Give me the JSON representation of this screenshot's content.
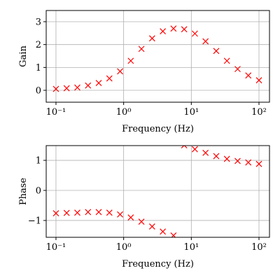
{
  "chart_data": [
    {
      "type": "scatter",
      "xlabel": "Frequency (Hz)",
      "ylabel": "Gain",
      "xscale": "log",
      "grid": true,
      "color": "#ff0000",
      "marker": "x",
      "x": [
        0.1,
        0.1438,
        0.2069,
        0.2976,
        0.4281,
        0.6158,
        0.8859,
        1.2743,
        1.833,
        2.6367,
        3.7927,
        5.4556,
        7.8476,
        11.2884,
        16.2378,
        23.3572,
        33.5982,
        48.3293,
        69.5193,
        100
      ],
      "values": [
        0.06,
        0.09,
        0.12,
        0.21,
        0.32,
        0.52,
        0.83,
        1.29,
        1.81,
        2.27,
        2.58,
        2.7,
        2.67,
        2.48,
        2.14,
        1.72,
        1.29,
        0.93,
        0.65,
        0.44
      ],
      "xlim": [
        0.0717,
        143
      ],
      "ylim": [
        -0.52,
        3.49
      ],
      "xticks": [
        {
          "value": 0.1,
          "label": "10⁻¹"
        },
        {
          "value": 1,
          "label": "10⁰"
        },
        {
          "value": 10,
          "label": "10¹"
        },
        {
          "value": 100,
          "label": "10²"
        }
      ],
      "yticks": [
        0,
        1,
        2,
        3
      ]
    },
    {
      "type": "scatter",
      "xlabel": "Frequency (Hz)",
      "ylabel": "Phase",
      "xscale": "log",
      "grid": true,
      "color": "#ff0000",
      "marker": "x",
      "x": [
        0.1,
        0.1438,
        0.2069,
        0.2976,
        0.4281,
        0.6158,
        0.8859,
        1.2743,
        1.833,
        2.6367,
        3.7927,
        5.4556,
        7.8476,
        11.2884,
        16.2378,
        23.3572,
        33.5982,
        48.3293,
        69.5193,
        100
      ],
      "values": [
        -0.76,
        -0.75,
        -0.74,
        -0.72,
        -0.72,
        -0.74,
        -0.8,
        -0.9,
        -1.04,
        -1.2,
        -1.37,
        -1.5,
        1.5,
        1.37,
        1.25,
        1.14,
        1.05,
        0.98,
        0.93,
        0.88
      ],
      "xlim": [
        0.0717,
        143
      ],
      "ylim": [
        -1.56,
        1.49
      ],
      "xticks": [
        {
          "value": 0.1,
          "label": "10⁻¹"
        },
        {
          "value": 1,
          "label": "10⁰"
        },
        {
          "value": 10,
          "label": "10¹"
        },
        {
          "value": 100,
          "label": "10²"
        }
      ],
      "yticks": [
        {
          "value": -1,
          "label": "−1"
        },
        0,
        1
      ]
    }
  ]
}
